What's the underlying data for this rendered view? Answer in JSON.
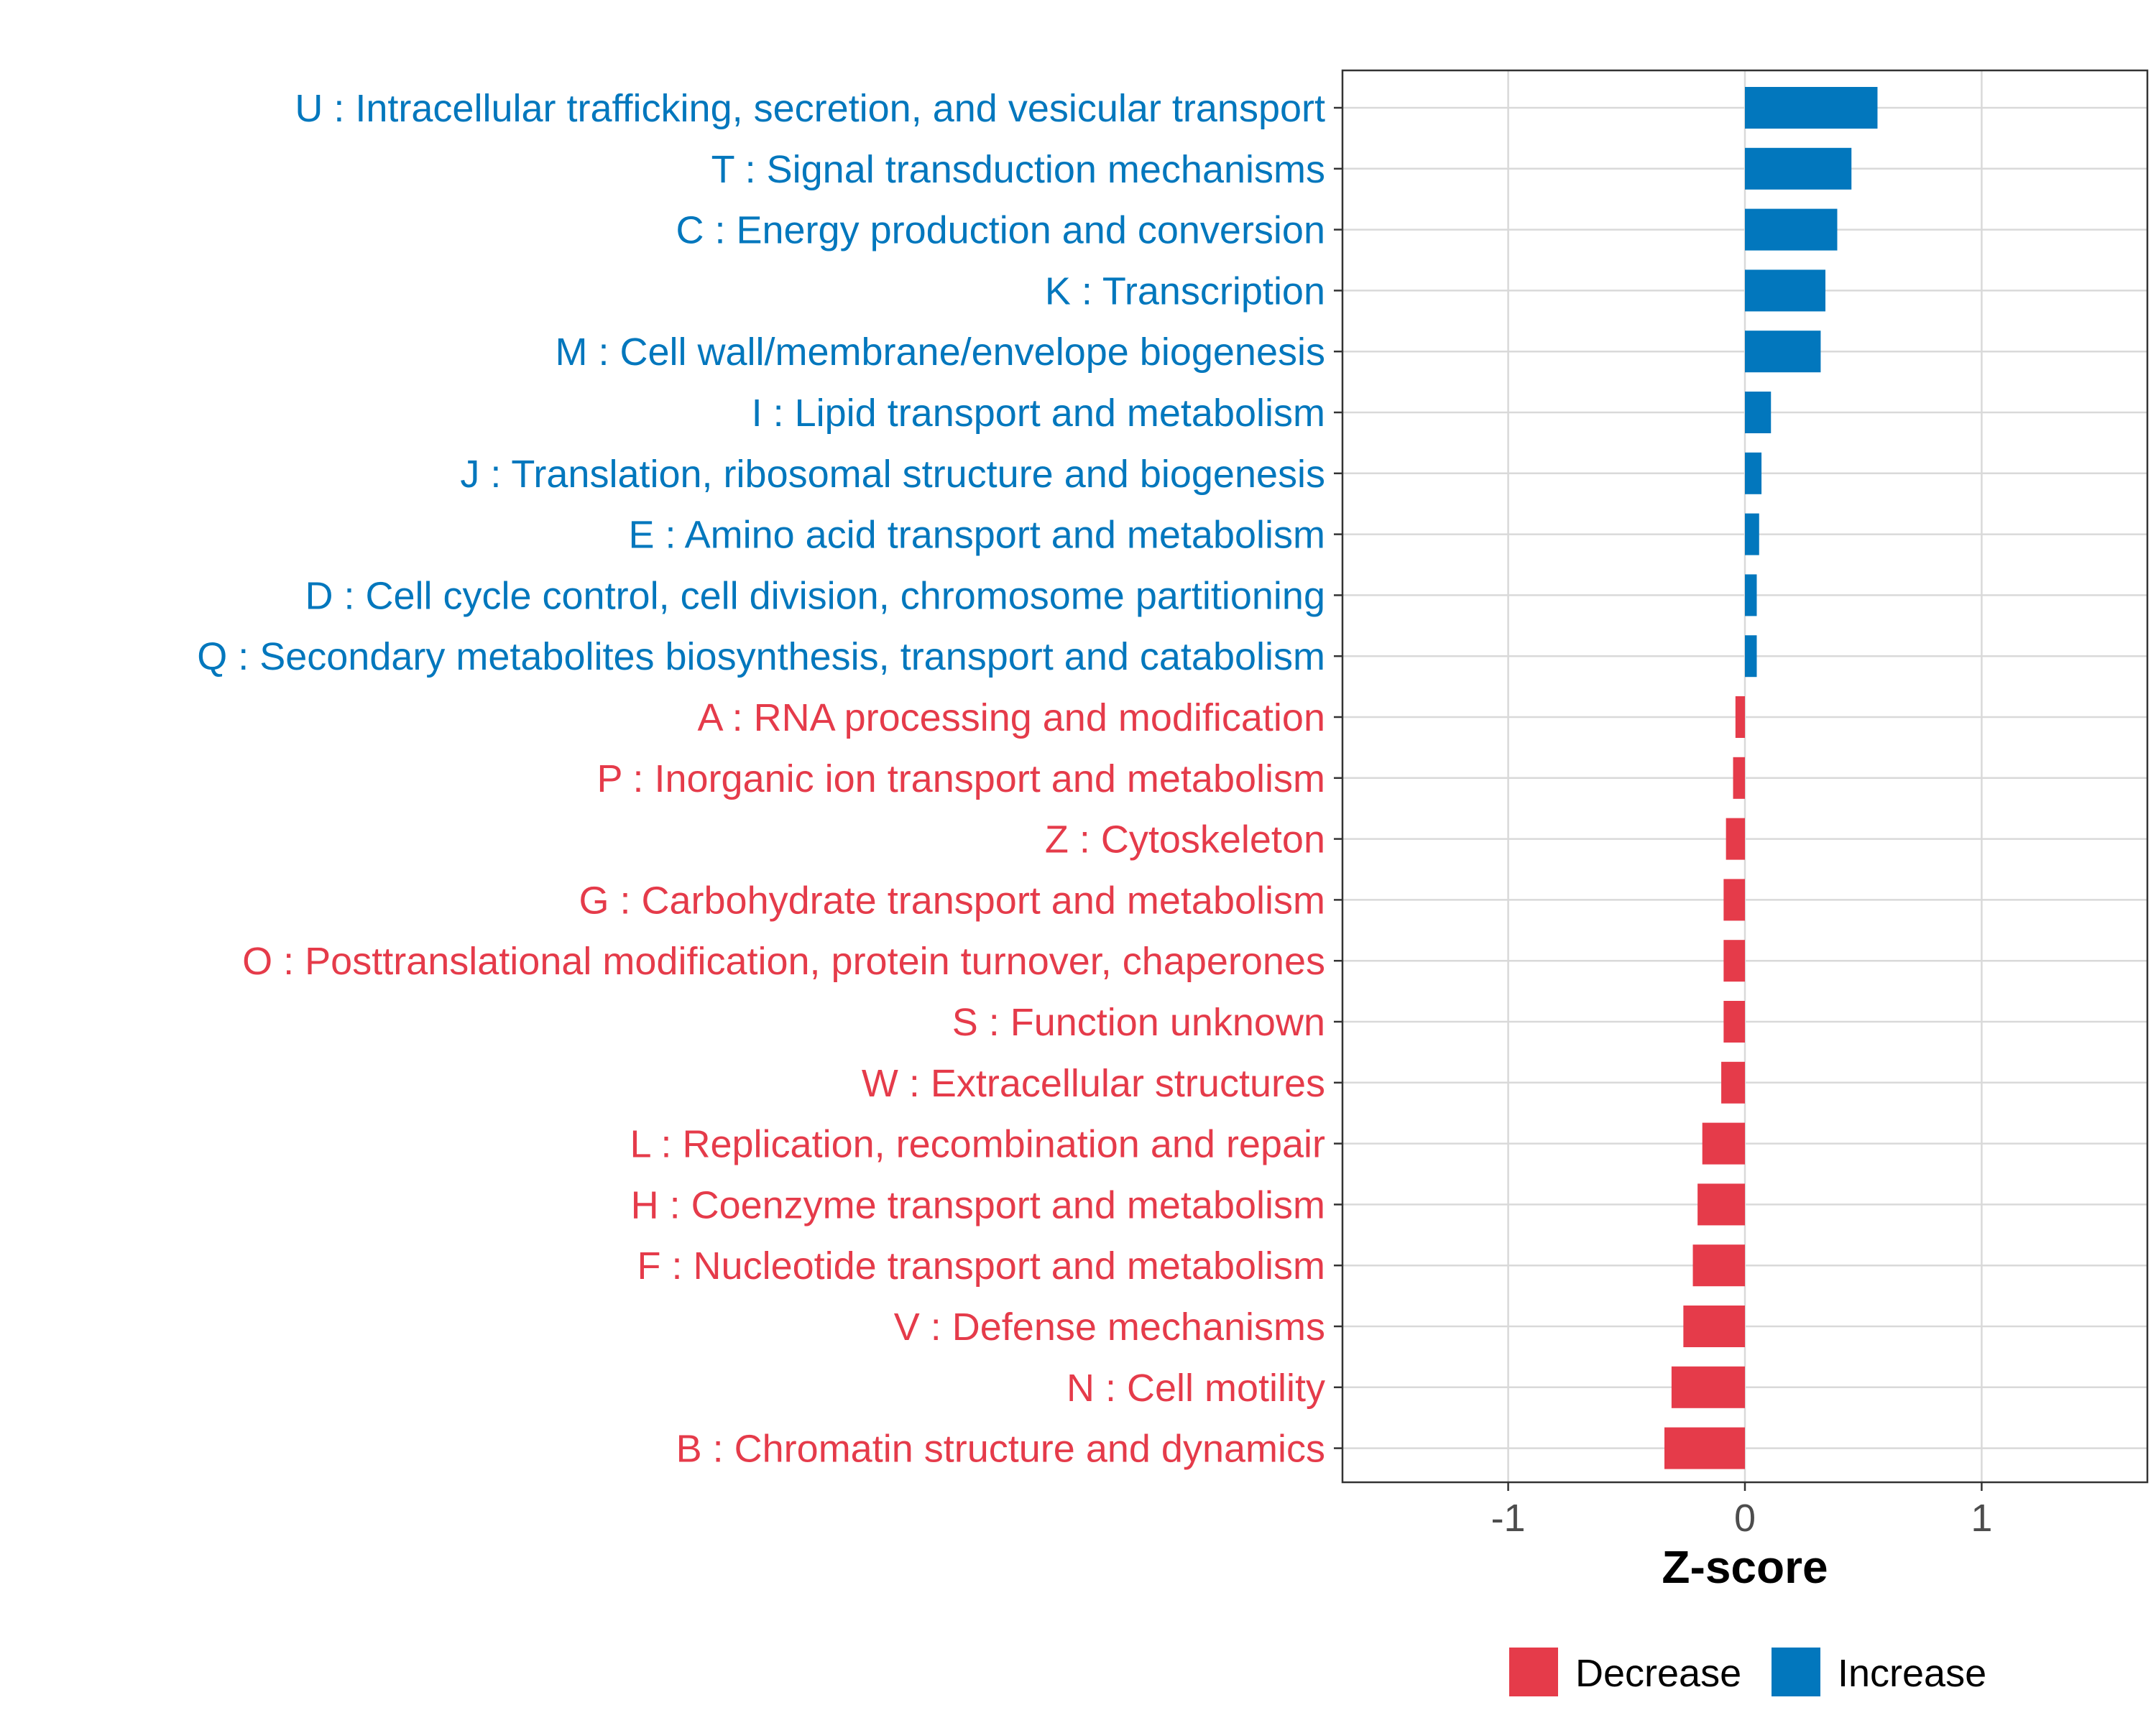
{
  "chart_data": {
    "type": "bar",
    "orientation": "horizontal",
    "xlabel": "Z-score",
    "xlim": [
      -1.7,
      1.7
    ],
    "x_ticks": [
      -1,
      0,
      1
    ],
    "x_tick_labels": [
      "-1",
      "0",
      "1"
    ],
    "grid": true,
    "legend_position": "bottom",
    "colors": {
      "increase": "#0277BD",
      "decrease": "#E53B4A"
    },
    "legend": [
      {
        "label": "Decrease",
        "key": "decrease"
      },
      {
        "label": "Increase",
        "key": "increase"
      }
    ],
    "categories": [
      "U : Intracellular trafficking, secretion, and vesicular transport",
      "T : Signal transduction mechanisms",
      "C : Energy production and conversion",
      "K : Transcription",
      "M : Cell wall/membrane/envelope biogenesis",
      "I : Lipid transport and metabolism",
      "J : Translation, ribosomal structure and biogenesis",
      "E : Amino acid transport and metabolism",
      "D : Cell cycle control, cell division, chromosome partitioning",
      "Q : Secondary metabolites biosynthesis, transport and catabolism",
      "A : RNA processing and modification",
      "P : Inorganic ion transport and metabolism",
      "Z : Cytoskeleton",
      "G : Carbohydrate transport and metabolism",
      "O : Posttranslational modification, protein turnover, chaperones",
      "S : Function unknown",
      "W : Extracellular structures",
      "L : Replication, recombination and repair",
      "H : Coenzyme transport and metabolism",
      "F : Nucleotide transport and metabolism",
      "V : Defense mechanisms",
      "N : Cell motility",
      "B : Chromatin structure and dynamics"
    ],
    "values": [
      0.56,
      0.45,
      0.39,
      0.34,
      0.32,
      0.11,
      0.07,
      0.06,
      0.05,
      0.05,
      -0.04,
      -0.05,
      -0.08,
      -0.09,
      -0.09,
      -0.09,
      -0.1,
      -0.18,
      -0.2,
      -0.22,
      -0.26,
      -0.31,
      -0.34
    ]
  }
}
